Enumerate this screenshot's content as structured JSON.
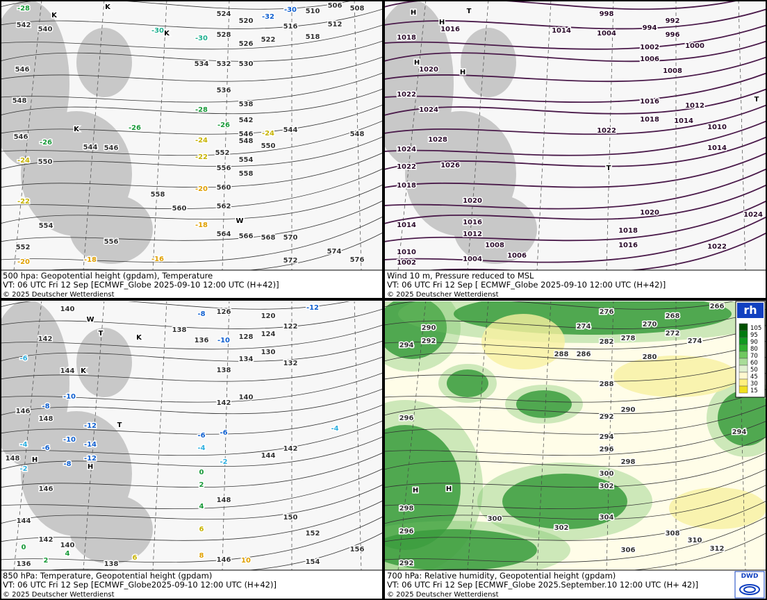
{
  "panels": [
    {
      "caption": [
        "500 hpa: Geopotential height (gpdam), Temperature",
        "VT: 06 UTC Fri  12 Sep [ECMWF_Globe 2025-09-10 12:00 UTC  (H+42)]",
        "© 2025 Deutscher Wetterdienst"
      ],
      "labels": [
        "542",
        "540",
        "546",
        "548",
        "546",
        "550",
        "554",
        "552",
        "544",
        "546",
        "552",
        "554",
        "556",
        "558",
        "558",
        "560",
        "560",
        "562",
        "564",
        "566",
        "568",
        "570",
        "572",
        "574",
        "576",
        "556",
        "536",
        "538",
        "542",
        "546",
        "548",
        "550",
        "544",
        "548",
        "524",
        "520",
        "516",
        "518",
        "522",
        "526",
        "528",
        "530",
        "532",
        "534",
        "510",
        "506",
        "508",
        "512",
        "-28",
        "-30",
        "-30",
        "-32",
        "-30",
        "-28",
        "-26",
        "-26",
        "-26",
        "-24",
        "-24",
        "-24",
        "-22",
        "-22",
        "-20",
        "-18",
        "-16",
        "-18",
        "-20",
        "K",
        "K",
        "K",
        "W",
        "K"
      ]
    },
    {
      "caption": [
        "Wind 10 m, Pressure reduced to MSL",
        "VT: 06 UTC Fri  12 Sep [ ECMWF_Globe 2025-09-10 12:00 UTC (H+42)]",
        "© 2025 Deutscher Wetterdienst"
      ],
      "labels": [
        "998",
        "992",
        "994",
        "996",
        "1000",
        "1002",
        "1004",
        "1006",
        "1008",
        "1014",
        "1016",
        "1018",
        "1020",
        "1022",
        "1024",
        "1028",
        "1026",
        "1024",
        "1022",
        "1018",
        "1020",
        "1016",
        "1012",
        "1014",
        "1010",
        "1002",
        "1008",
        "1006",
        "1004",
        "1022",
        "1016",
        "1018",
        "1012",
        "1014",
        "1010",
        "1014",
        "1020",
        "1018",
        "1016",
        "1022",
        "1024",
        "H",
        "H",
        "H",
        "H",
        "T",
        "T",
        "T"
      ]
    },
    {
      "caption": [
        "850 hPa:  Temperature, Geopotential height (gpdam)",
        "VT: 06 UTC Fri  12 Sep [ECMWF_Globe2025-09-10 12:00 UTC  (H+42)]",
        "© 2025 Deutscher Wetterdienst"
      ],
      "labels": [
        "140",
        "142",
        "144",
        "146",
        "148",
        "148",
        "146",
        "144",
        "142",
        "140",
        "136",
        "138",
        "146",
        "150",
        "152",
        "154",
        "156",
        "148",
        "144",
        "142",
        "140",
        "142",
        "138",
        "134",
        "130",
        "128",
        "124",
        "126",
        "120",
        "122",
        "132",
        "136",
        "138",
        "-8",
        "-10",
        "-12",
        "-6",
        "-8",
        "-10",
        "-12",
        "-10",
        "-14",
        "-12",
        "-8",
        "-6",
        "-4",
        "-2",
        "-6",
        "-6",
        "-4",
        "-2",
        "-4",
        "0",
        "2",
        "4",
        "6",
        "8",
        "10",
        "6",
        "4",
        "2",
        "0",
        "H",
        "H",
        "T",
        "T",
        "K",
        "K",
        "W"
      ]
    },
    {
      "caption": [
        "700 hPa:  Relative humidity, Geopotential height (gpdam)",
        "VT: 06 UTC Fri  12 Sep [ECMWF_Globe  2025.September.10 12:00 UTC (H+ 42)]",
        "© 2025 Deutscher Wetterdienst"
      ],
      "labels": [
        "290",
        "292",
        "294",
        "296",
        "298",
        "296",
        "292",
        "276",
        "274",
        "282",
        "278",
        "280",
        "286",
        "288",
        "288",
        "290",
        "292",
        "294",
        "296",
        "298",
        "300",
        "302",
        "300",
        "302",
        "304",
        "306",
        "308",
        "310",
        "312",
        "294",
        "266",
        "268",
        "272",
        "270",
        "274",
        "H",
        "H"
      ]
    }
  ],
  "legend": {
    "title": "rh",
    "values": [
      "105",
      "95",
      "90",
      "80",
      "70",
      "60",
      "50",
      "45",
      "30",
      "15"
    ]
  },
  "logo": "DWD"
}
